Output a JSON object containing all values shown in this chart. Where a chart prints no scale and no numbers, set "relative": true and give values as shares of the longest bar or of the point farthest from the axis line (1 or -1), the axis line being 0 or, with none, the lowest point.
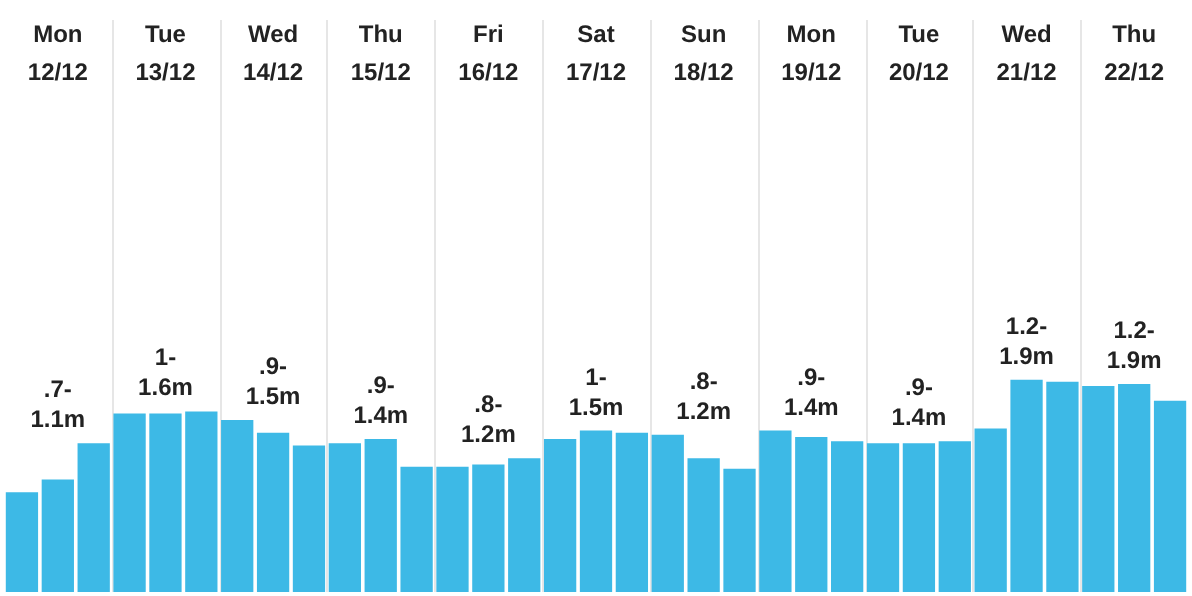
{
  "chart_data": {
    "type": "bar",
    "relative": true,
    "color": "#3db9e6",
    "grid": "x",
    "categories": [
      null,
      "Mon 12/12",
      null,
      null,
      "Tue 13/12",
      null,
      null,
      "Wed 14/12",
      null,
      null,
      "Thu 15/12",
      null,
      null,
      "Fri 16/12",
      null,
      null,
      "Sat 17/12",
      null,
      null,
      "Sun 18/12",
      null,
      null,
      "Mon 19/12",
      null,
      null,
      "Tue 20/12",
      null,
      null,
      "Wed 21/12",
      null,
      null,
      "Thu 22/12",
      null
    ],
    "values": [
      0.47,
      0.53,
      0.7,
      0.84,
      0.84,
      0.85,
      0.81,
      0.75,
      0.69,
      0.7,
      0.72,
      0.59,
      0.59,
      0.6,
      0.63,
      0.72,
      0.76,
      0.75,
      0.74,
      0.63,
      0.58,
      0.76,
      0.73,
      0.71,
      0.7,
      0.7,
      0.71,
      0.77,
      1,
      0.99,
      0.97,
      0.98,
      0.9
    ],
    "annotations": [
      ".7-1.1m",
      "1-1.6m",
      ".9-1.5m",
      ".9-1.4m",
      ".8-1.2m",
      "1-1.5m",
      ".8-1.2m",
      ".9-1.4m",
      ".9-1.4m",
      "1.2-1.9m",
      "1.2-1.9m"
    ]
  }
}
